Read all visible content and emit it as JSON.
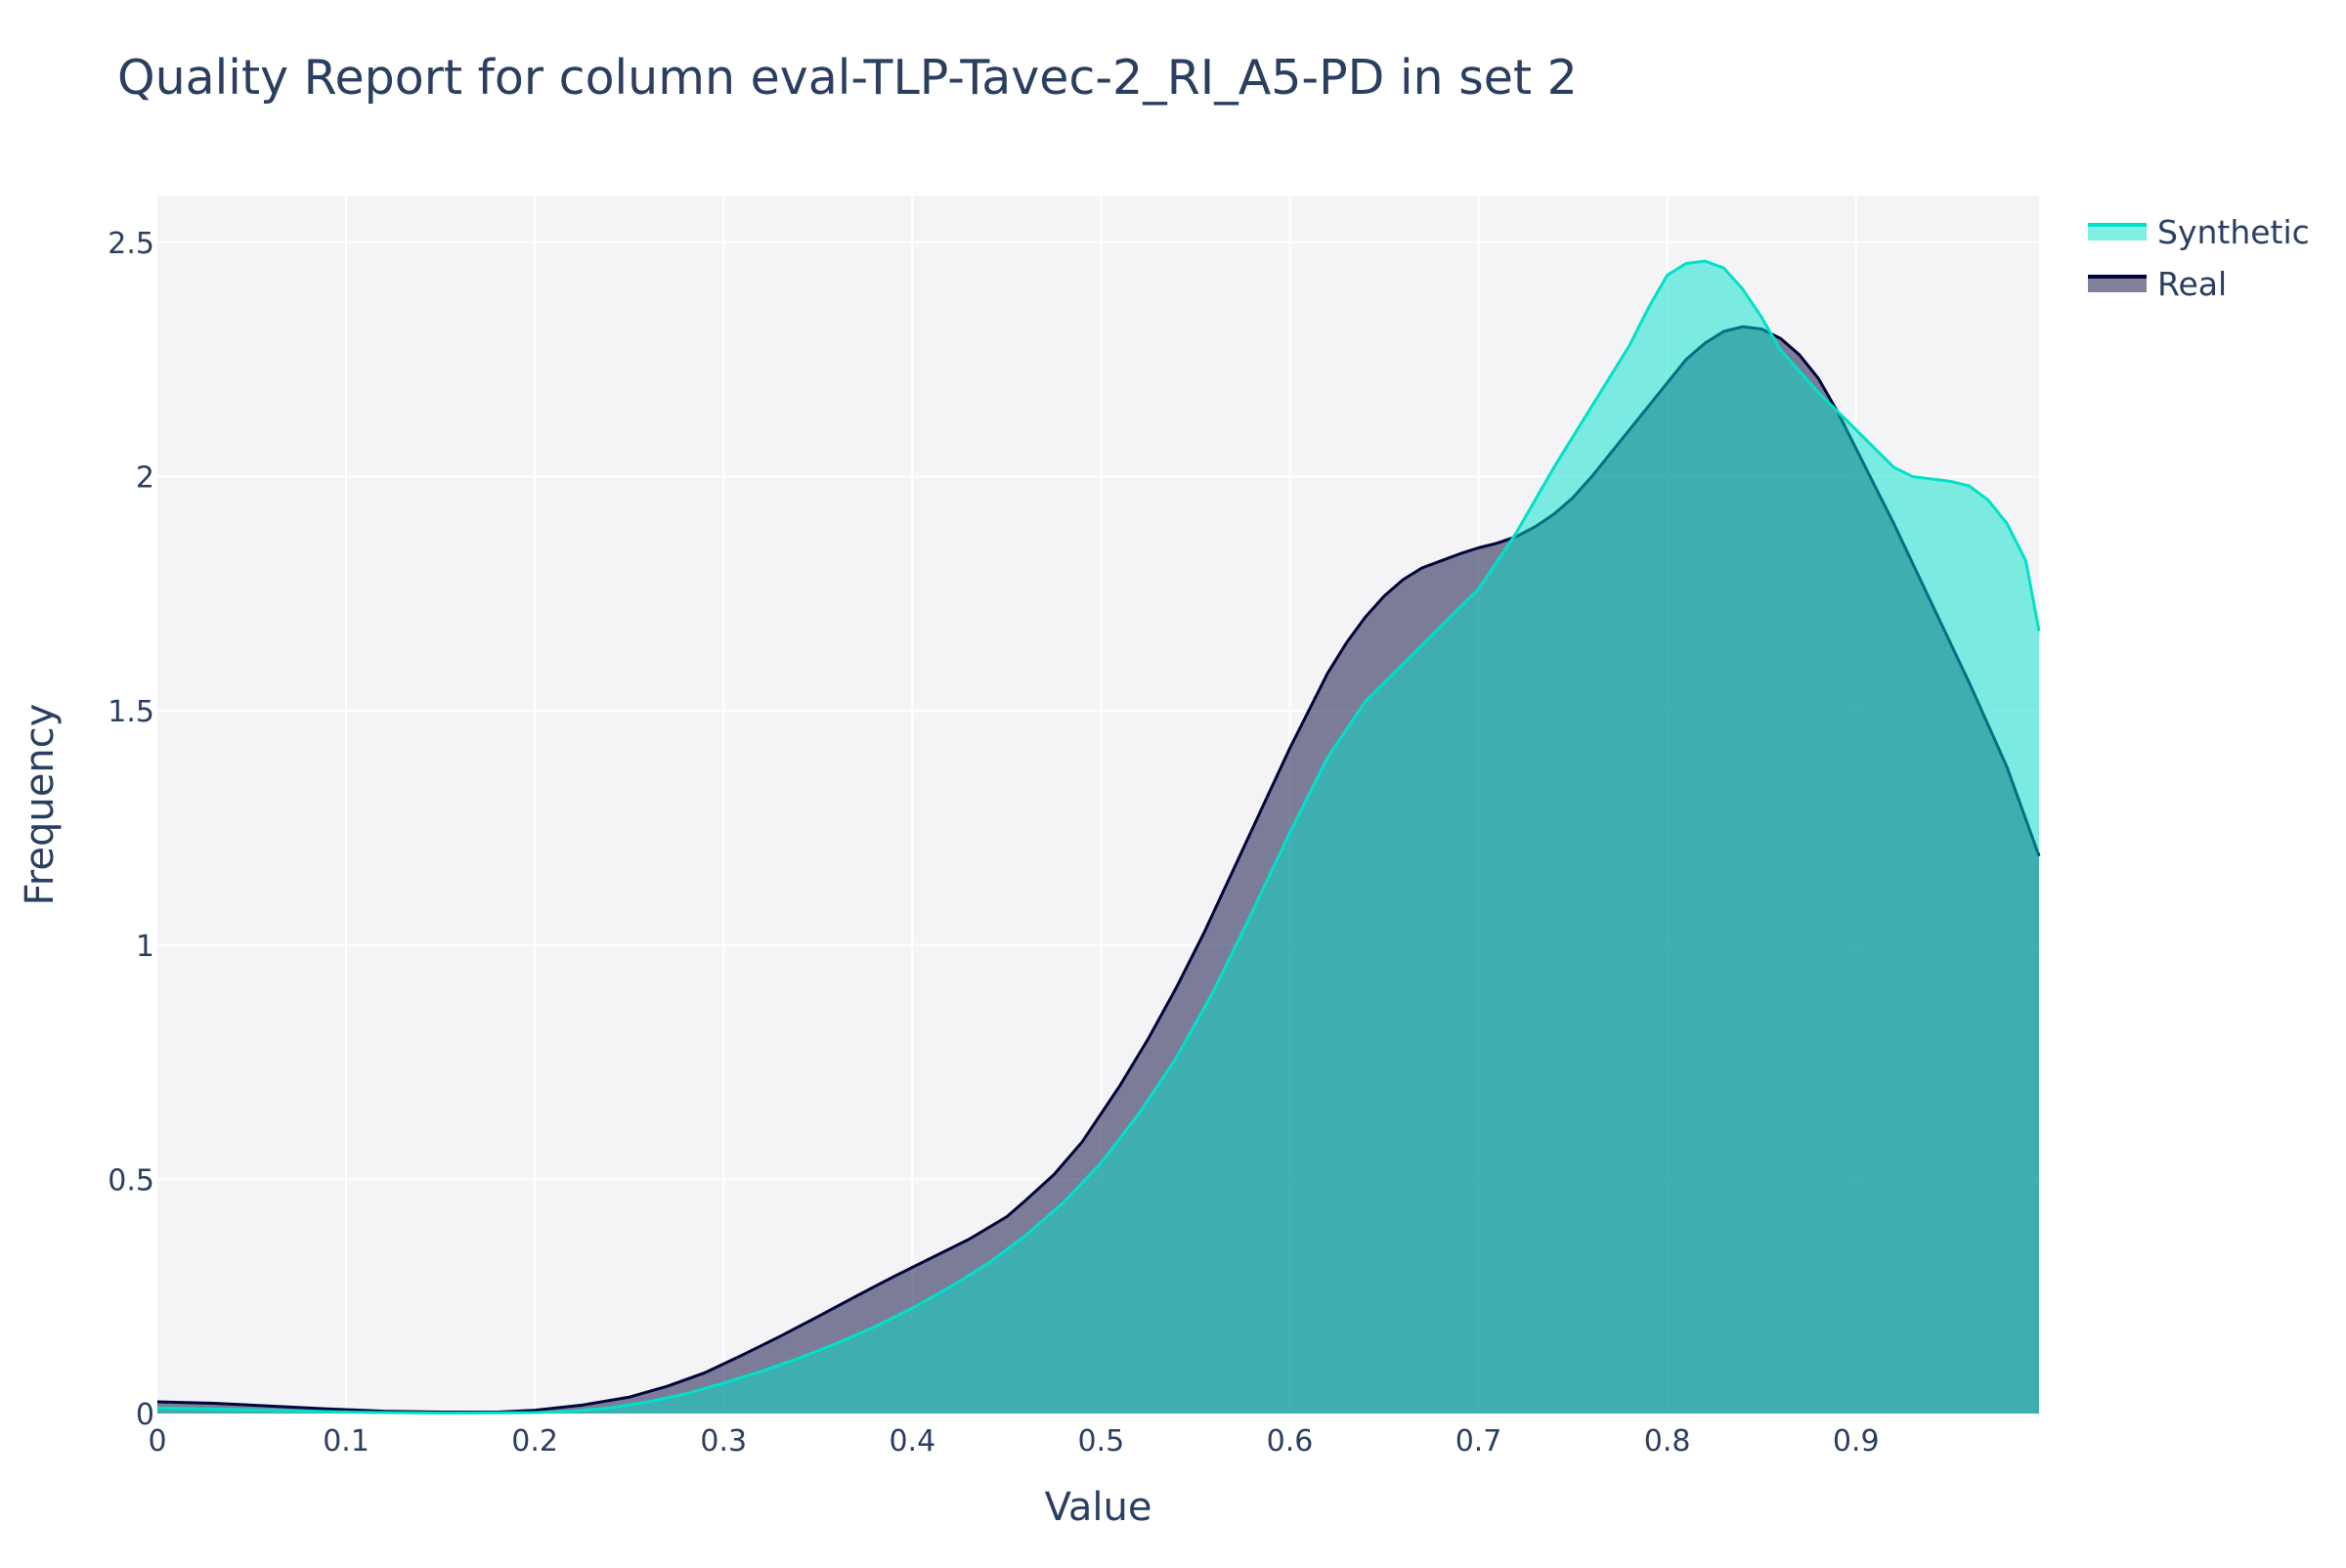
{
  "chart_data": {
    "type": "area",
    "title": "Quality Report for column eval-TLP-Tavec-2_RI_A5-PD in set 2",
    "xlabel": "Value",
    "ylabel": "Frequency",
    "xlim": [
      0,
      0.997
    ],
    "ylim": [
      0,
      2.6
    ],
    "x_ticks": [
      0,
      0.1,
      0.2,
      0.3,
      0.4,
      0.5,
      0.6,
      0.7,
      0.8,
      0.9
    ],
    "x_tick_labels": [
      "0",
      "0.1",
      "0.2",
      "0.3",
      "0.4",
      "0.5",
      "0.6",
      "0.7",
      "0.8",
      "0.9"
    ],
    "y_ticks": [
      0,
      0.5,
      1,
      1.5,
      2,
      2.5
    ],
    "y_tick_labels": [
      "0",
      "0.5",
      "1",
      "1.5",
      "2",
      "2.5"
    ],
    "grid": true,
    "legend_position": "top-right",
    "background_color": "#f4f4f7",
    "series": [
      {
        "name": "Real",
        "line_color": "#01053a",
        "fill_color": "#01053a",
        "fill_opacity": 0.5,
        "x": [
          0,
          0.03,
          0.06,
          0.09,
          0.12,
          0.15,
          0.18,
          0.2,
          0.225,
          0.25,
          0.27,
          0.29,
          0.31,
          0.33,
          0.35,
          0.37,
          0.39,
          0.41,
          0.43,
          0.45,
          0.46,
          0.475,
          0.49,
          0.5,
          0.51,
          0.525,
          0.54,
          0.555,
          0.57,
          0.585,
          0.6,
          0.61,
          0.62,
          0.63,
          0.64,
          0.65,
          0.66,
          0.67,
          0.68,
          0.69,
          0.7,
          0.71,
          0.72,
          0.73,
          0.74,
          0.75,
          0.76,
          0.77,
          0.78,
          0.79,
          0.8,
          0.81,
          0.82,
          0.83,
          0.84,
          0.85,
          0.86,
          0.87,
          0.88,
          0.89,
          0.9,
          0.92,
          0.94,
          0.96,
          0.98,
          0.997
        ],
        "y": [
          0.025,
          0.022,
          0.016,
          0.01,
          0.005,
          0.003,
          0.003,
          0.007,
          0.018,
          0.035,
          0.058,
          0.087,
          0.125,
          0.165,
          0.207,
          0.25,
          0.292,
          0.332,
          0.372,
          0.42,
          0.455,
          0.51,
          0.58,
          0.64,
          0.7,
          0.8,
          0.91,
          1.03,
          1.16,
          1.29,
          1.42,
          1.5,
          1.58,
          1.645,
          1.7,
          1.745,
          1.78,
          1.805,
          1.82,
          1.835,
          1.848,
          1.858,
          1.872,
          1.893,
          1.92,
          1.955,
          2.0,
          2.05,
          2.1,
          2.15,
          2.2,
          2.25,
          2.285,
          2.31,
          2.32,
          2.315,
          2.295,
          2.26,
          2.21,
          2.14,
          2.06,
          1.9,
          1.73,
          1.56,
          1.38,
          1.19
        ]
      },
      {
        "name": "Synthetic",
        "line_color": "#01e0c9",
        "fill_color": "#01e0c9",
        "fill_opacity": 0.5,
        "x": [
          0,
          0.05,
          0.1,
          0.15,
          0.2,
          0.22,
          0.24,
          0.26,
          0.28,
          0.3,
          0.32,
          0.34,
          0.36,
          0.38,
          0.4,
          0.42,
          0.44,
          0.46,
          0.48,
          0.5,
          0.52,
          0.54,
          0.56,
          0.58,
          0.6,
          0.62,
          0.64,
          0.66,
          0.68,
          0.7,
          0.72,
          0.74,
          0.76,
          0.78,
          0.79,
          0.8,
          0.81,
          0.82,
          0.83,
          0.84,
          0.85,
          0.86,
          0.88,
          0.9,
          0.91,
          0.92,
          0.93,
          0.94,
          0.95,
          0.96,
          0.97,
          0.98,
          0.99,
          0.997
        ],
        "y": [
          0.012,
          0.008,
          0.003,
          0.001,
          0.002,
          0.005,
          0.012,
          0.025,
          0.042,
          0.065,
          0.09,
          0.118,
          0.15,
          0.185,
          0.225,
          0.27,
          0.32,
          0.38,
          0.45,
          0.535,
          0.64,
          0.76,
          0.905,
          1.07,
          1.24,
          1.4,
          1.52,
          1.6,
          1.68,
          1.76,
          1.88,
          2.02,
          2.15,
          2.28,
          2.36,
          2.43,
          2.455,
          2.46,
          2.445,
          2.4,
          2.34,
          2.27,
          2.18,
          2.1,
          2.06,
          2.02,
          2.0,
          1.995,
          1.99,
          1.98,
          1.95,
          1.9,
          1.82,
          1.67
        ]
      }
    ]
  }
}
